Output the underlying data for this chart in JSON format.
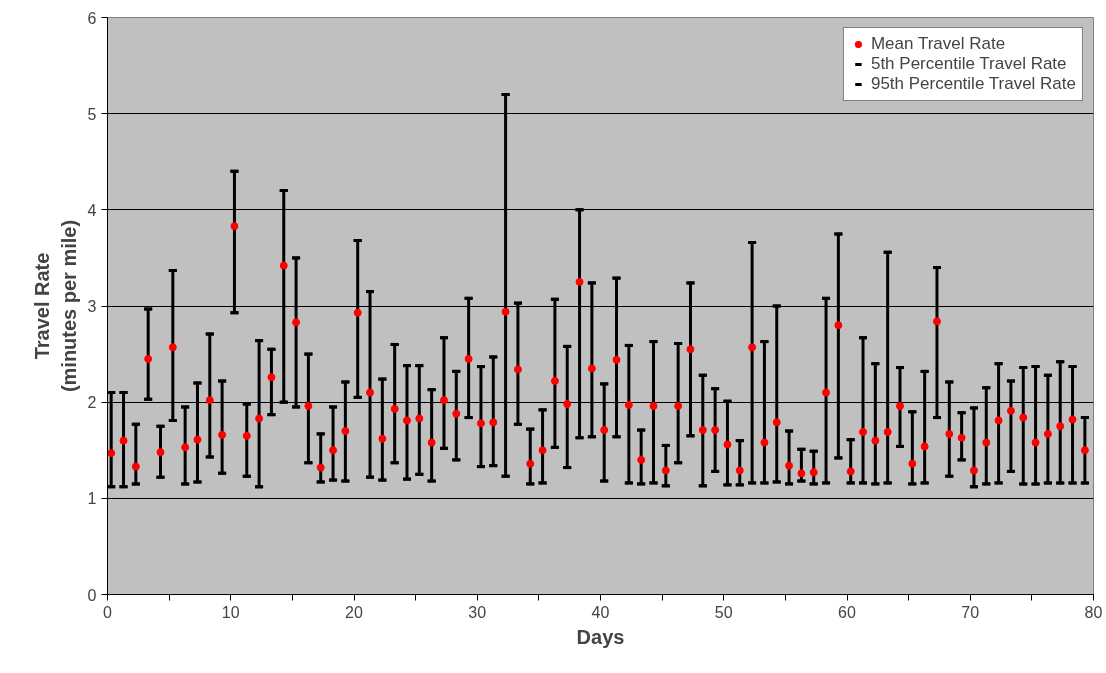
{
  "chart_data": {
    "type": "scatter",
    "xlabel": "Days",
    "ylabel": "Travel Rate\n(minutes per mile)",
    "x": [
      0.3,
      1.3,
      2.3,
      3.3,
      4.3,
      5.3,
      6.3,
      7.3,
      8.3,
      9.3,
      10.3,
      11.3,
      12.3,
      13.3,
      14.3,
      15.3,
      16.3,
      17.3,
      18.3,
      19.3,
      20.3,
      21.3,
      22.3,
      23.3,
      24.3,
      25.3,
      26.3,
      27.3,
      28.3,
      29.3,
      30.3,
      31.3,
      32.3,
      33.3,
      34.3,
      35.3,
      36.3,
      37.3,
      38.3,
      39.3,
      40.3,
      41.3,
      42.3,
      43.3,
      44.3,
      45.3,
      46.3,
      47.3,
      48.3,
      49.3,
      50.3,
      51.3,
      52.3,
      53.3,
      54.3,
      55.3,
      56.3,
      57.3,
      58.3,
      59.3,
      60.3,
      61.3,
      62.3,
      63.3,
      64.3,
      65.3,
      66.3,
      67.3,
      68.3,
      69.3,
      70.3,
      71.3,
      72.3,
      73.3,
      74.3,
      75.3,
      76.3,
      77.3,
      78.3,
      79.3
    ],
    "series": [
      {
        "name": "Mean Travel Rate",
        "color": "#ff0000",
        "marker": "circle",
        "values": [
          1.47,
          1.6,
          1.33,
          2.45,
          1.48,
          2.57,
          1.53,
          1.61,
          2.02,
          1.66,
          3.83,
          1.65,
          1.83,
          2.26,
          3.42,
          2.83,
          1.96,
          1.32,
          1.5,
          1.7,
          2.93,
          2.1,
          1.62,
          1.93,
          1.81,
          1.83,
          1.58,
          2.02,
          1.88,
          2.45,
          1.78,
          1.79,
          2.94,
          2.34,
          1.36,
          1.5,
          2.22,
          1.98,
          3.25,
          2.35,
          1.71,
          2.44,
          1.97,
          1.4,
          1.96,
          1.29,
          1.96,
          2.55,
          1.71,
          1.71,
          1.56,
          1.29,
          2.57,
          1.58,
          1.79,
          1.34,
          1.26,
          1.27,
          2.1,
          2.8,
          1.28,
          1.69,
          1.6,
          1.69,
          1.96,
          1.36,
          1.54,
          2.84,
          1.67,
          1.63,
          1.29,
          1.58,
          1.81,
          1.91,
          1.84,
          1.58,
          1.67,
          1.75,
          1.82,
          1.5
        ],
        "errors": [
          [
            1.12,
            2.1
          ],
          [
            1.12,
            2.1
          ],
          [
            1.15,
            1.77
          ],
          [
            2.03,
            2.97
          ],
          [
            1.22,
            1.75
          ],
          [
            1.81,
            3.37
          ],
          [
            1.15,
            1.95
          ],
          [
            1.17,
            2.2
          ],
          [
            1.43,
            2.71
          ],
          [
            1.26,
            2.22
          ],
          [
            2.93,
            4.4
          ],
          [
            1.23,
            1.98
          ],
          [
            1.12,
            2.64
          ],
          [
            1.87,
            2.55
          ],
          [
            2.0,
            4.2
          ],
          [
            1.95,
            3.5
          ],
          [
            1.37,
            2.5
          ],
          [
            1.17,
            1.67
          ],
          [
            1.19,
            1.95
          ],
          [
            1.18,
            2.21
          ],
          [
            2.05,
            3.68
          ],
          [
            1.22,
            3.15
          ],
          [
            1.19,
            2.24
          ],
          [
            1.37,
            2.6
          ],
          [
            1.2,
            2.38
          ],
          [
            1.25,
            2.38
          ],
          [
            1.18,
            2.13
          ],
          [
            1.52,
            2.67
          ],
          [
            1.4,
            2.32
          ],
          [
            1.84,
            3.08
          ],
          [
            1.33,
            2.37
          ],
          [
            1.34,
            2.47
          ],
          [
            1.23,
            5.2
          ],
          [
            1.77,
            3.03
          ],
          [
            1.15,
            1.72
          ],
          [
            1.16,
            1.92
          ],
          [
            1.53,
            3.07
          ],
          [
            1.32,
            2.58
          ],
          [
            1.63,
            4.0
          ],
          [
            1.64,
            3.24
          ],
          [
            1.18,
            2.19
          ],
          [
            1.64,
            3.29
          ],
          [
            1.16,
            2.59
          ],
          [
            1.15,
            1.71
          ],
          [
            1.16,
            2.63
          ],
          [
            1.13,
            1.55
          ],
          [
            1.37,
            2.61
          ],
          [
            1.65,
            3.24
          ],
          [
            1.13,
            2.28
          ],
          [
            1.28,
            2.14
          ],
          [
            1.14,
            2.01
          ],
          [
            1.14,
            1.6
          ],
          [
            1.16,
            3.66
          ],
          [
            1.16,
            2.63
          ],
          [
            1.17,
            3.0
          ],
          [
            1.15,
            1.7
          ],
          [
            1.18,
            1.51
          ],
          [
            1.15,
            1.49
          ],
          [
            1.16,
            3.08
          ],
          [
            1.42,
            3.75
          ],
          [
            1.16,
            1.61
          ],
          [
            1.16,
            2.67
          ],
          [
            1.15,
            2.4
          ],
          [
            1.16,
            3.56
          ],
          [
            1.54,
            2.36
          ],
          [
            1.15,
            1.9
          ],
          [
            1.16,
            2.32
          ],
          [
            1.84,
            3.4
          ],
          [
            1.23,
            2.21
          ],
          [
            1.4,
            1.89
          ],
          [
            1.12,
            1.94
          ],
          [
            1.15,
            2.15
          ],
          [
            1.16,
            2.4
          ],
          [
            1.28,
            2.22
          ],
          [
            1.15,
            2.36
          ],
          [
            1.15,
            2.37
          ],
          [
            1.16,
            2.28
          ],
          [
            1.16,
            2.42
          ],
          [
            1.16,
            2.37
          ],
          [
            1.16,
            1.84
          ]
        ]
      },
      {
        "name": "5th Percentile Travel Rate",
        "color": "#000000",
        "values": [
          1.12,
          1.12,
          1.15,
          2.03,
          1.22,
          1.81,
          1.15,
          1.17,
          1.43,
          1.26,
          2.93,
          1.23,
          1.12,
          1.87,
          2.0,
          1.95,
          1.37,
          1.17,
          1.19,
          1.18,
          2.05,
          1.22,
          1.19,
          1.37,
          1.2,
          1.25,
          1.18,
          1.52,
          1.4,
          1.84,
          1.33,
          1.34,
          1.23,
          1.77,
          1.15,
          1.16,
          1.53,
          1.32,
          1.63,
          1.64,
          1.18,
          1.64,
          1.16,
          1.15,
          1.16,
          1.13,
          1.37,
          1.65,
          1.13,
          1.28,
          1.14,
          1.14,
          1.16,
          1.16,
          1.17,
          1.15,
          1.18,
          1.15,
          1.16,
          1.42,
          1.16,
          1.16,
          1.15,
          1.16,
          1.54,
          1.15,
          1.16,
          1.84,
          1.23,
          1.4,
          1.12,
          1.15,
          1.16,
          1.28,
          1.15,
          1.15,
          1.16,
          1.16,
          1.16,
          1.16
        ]
      },
      {
        "name": "95th Percentile Travel Rate",
        "color": "#000000",
        "values": [
          2.1,
          2.1,
          1.77,
          2.97,
          1.75,
          3.37,
          1.95,
          2.2,
          2.71,
          2.22,
          4.4,
          1.98,
          2.64,
          2.55,
          4.2,
          3.5,
          2.5,
          1.67,
          1.95,
          2.21,
          3.68,
          3.15,
          2.24,
          2.6,
          2.38,
          2.38,
          2.13,
          2.67,
          2.32,
          3.08,
          2.37,
          2.47,
          5.2,
          3.03,
          1.72,
          1.92,
          3.07,
          2.58,
          4.0,
          3.24,
          2.19,
          3.29,
          2.59,
          1.71,
          2.63,
          1.55,
          2.61,
          3.24,
          2.28,
          2.14,
          2.01,
          1.6,
          3.66,
          2.63,
          3.0,
          1.7,
          1.51,
          1.49,
          3.08,
          3.75,
          1.61,
          2.67,
          2.4,
          3.56,
          2.36,
          1.9,
          2.32,
          3.4,
          2.21,
          1.89,
          1.94,
          2.15,
          2.4,
          2.22,
          2.36,
          2.37,
          2.28,
          2.42,
          2.37,
          1.84
        ]
      }
    ],
    "xlim": [
      0,
      80
    ],
    "ylim": [
      0,
      6
    ],
    "xticks": [
      0,
      {
        "value": 5,
        "label": null
      },
      10,
      {
        "value": 15,
        "label": null
      },
      20,
      {
        "value": 25,
        "label": null
      },
      30,
      {
        "value": 35,
        "label": null
      },
      40,
      {
        "value": 45,
        "label": null
      },
      50,
      {
        "value": 55,
        "label": null
      },
      60,
      {
        "value": 65,
        "label": null
      },
      70,
      {
        "value": 75,
        "label": null
      },
      80
    ],
    "yticks": [
      0,
      1,
      2,
      3,
      4,
      5,
      6
    ],
    "grid": "y",
    "legend": "top right"
  }
}
